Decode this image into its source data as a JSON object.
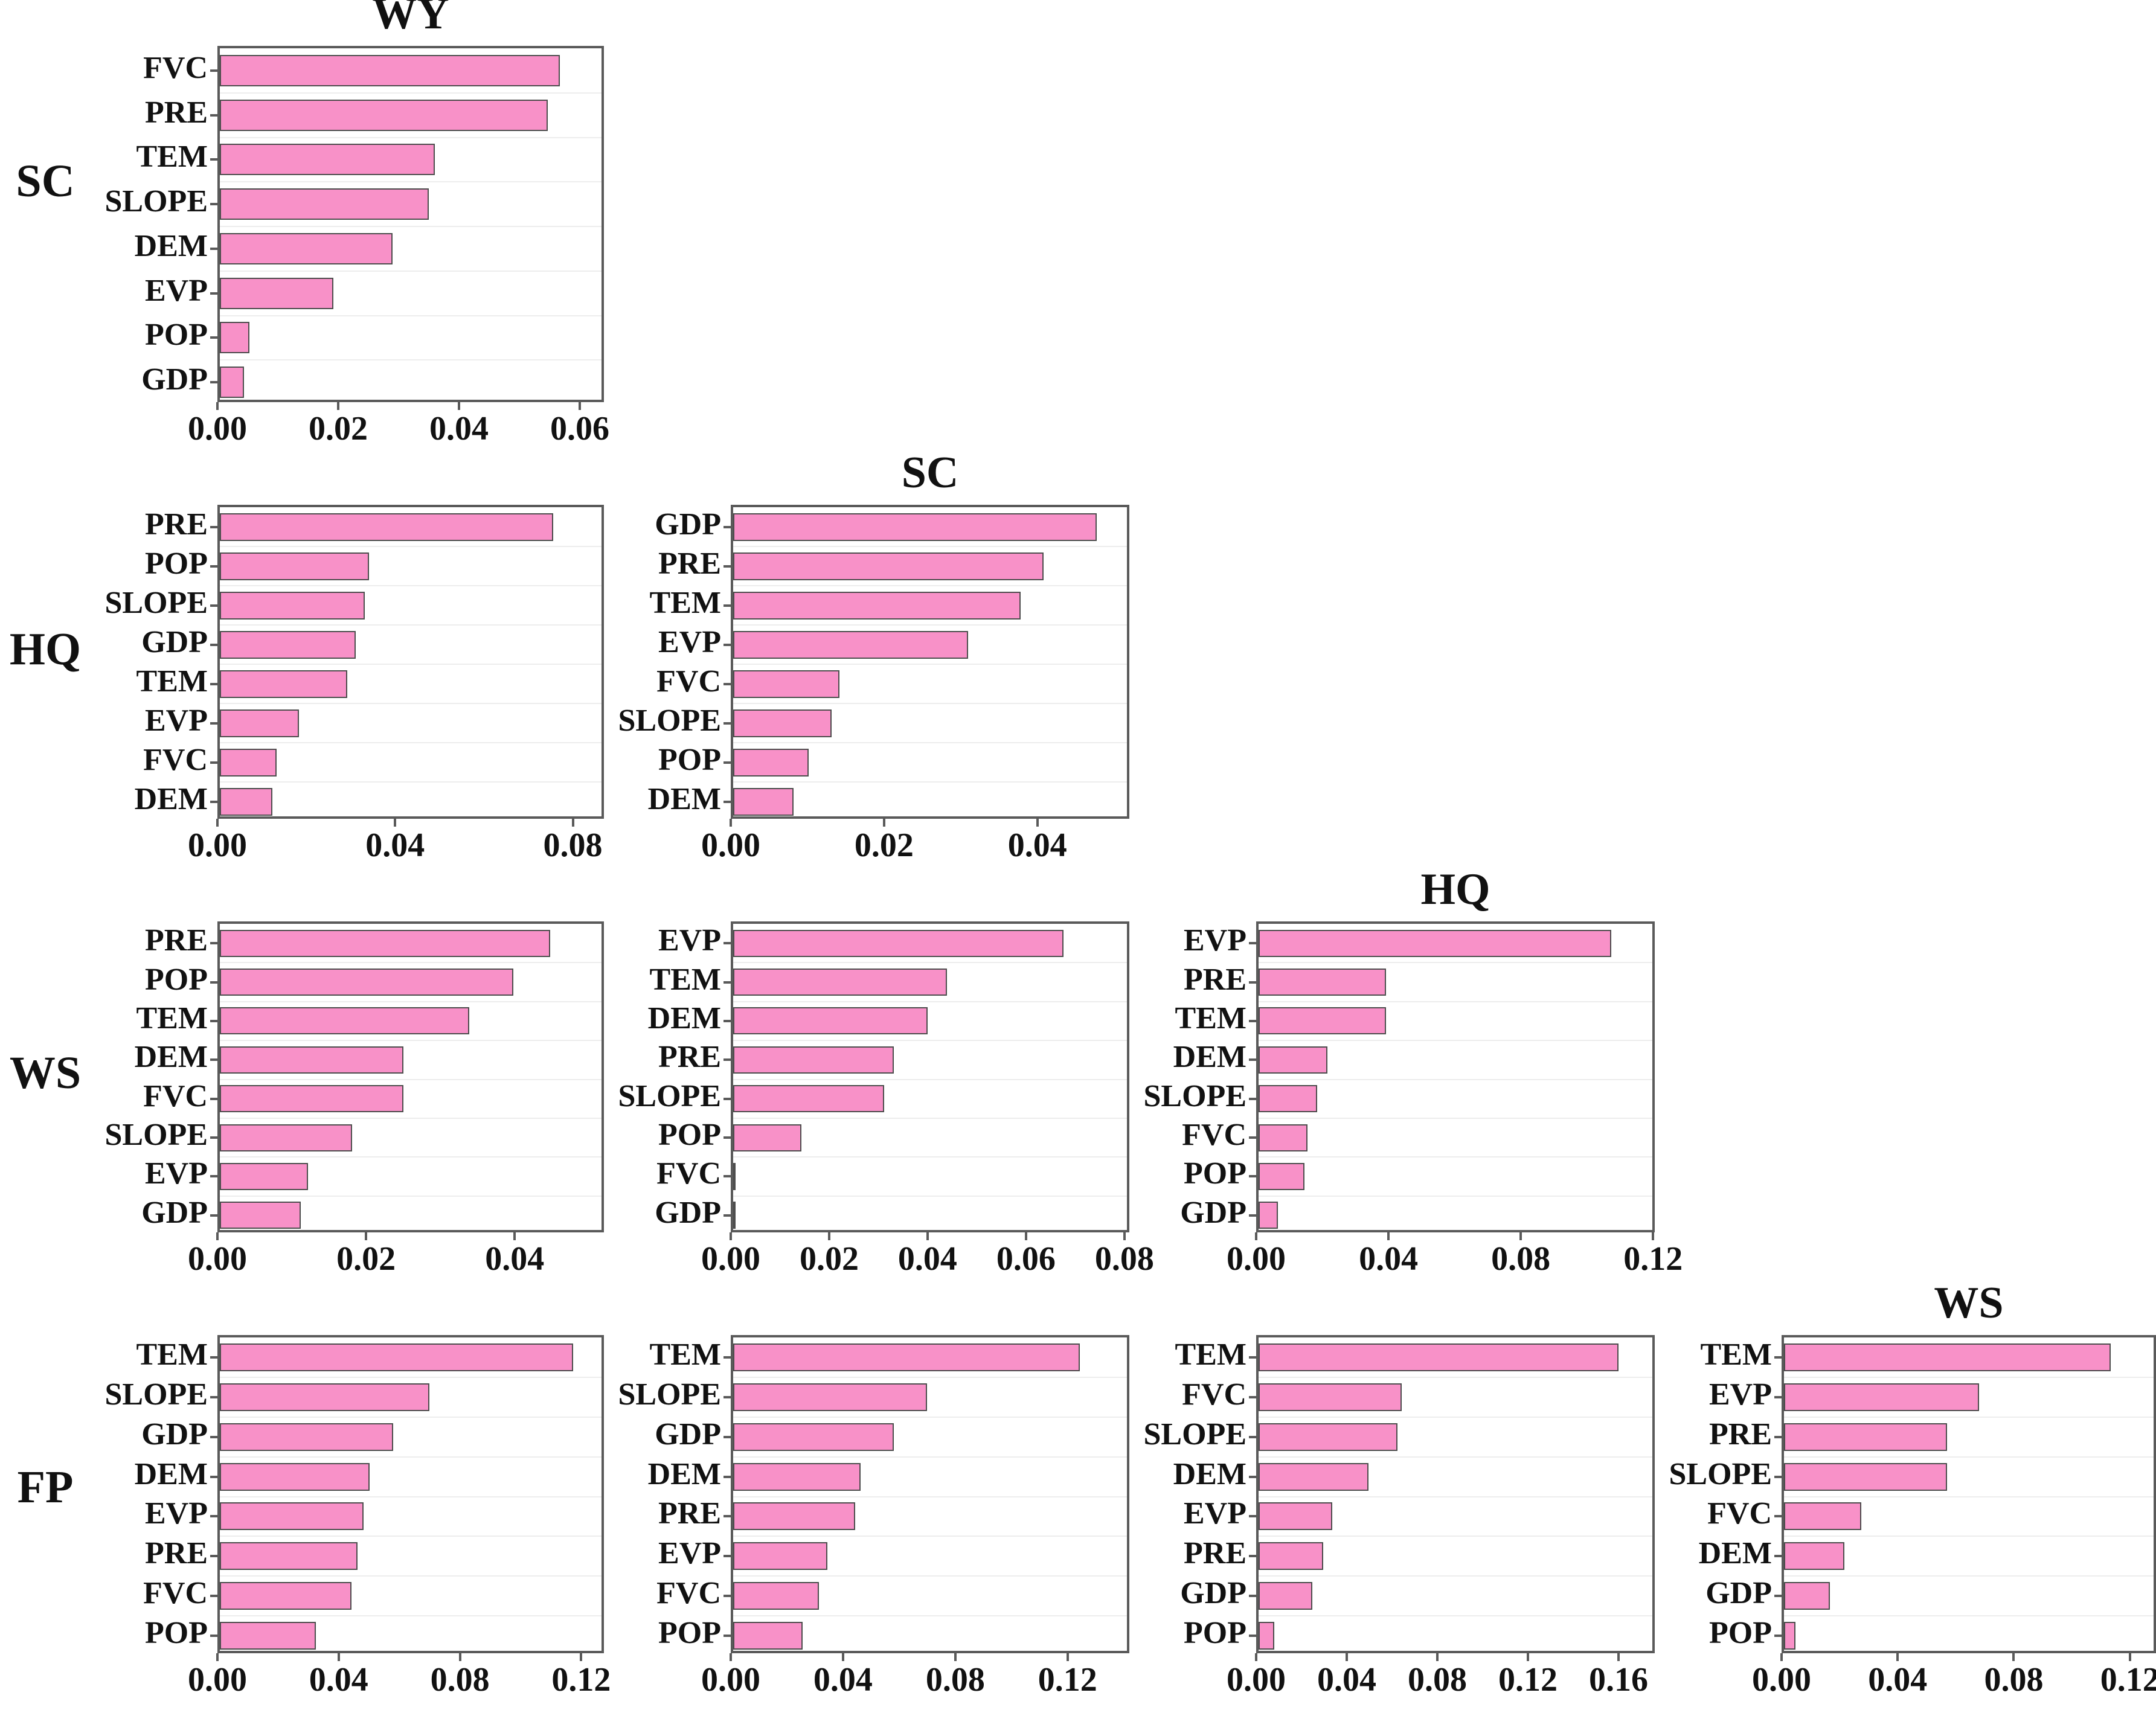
{
  "figure": {
    "bar_color": "#f891c8",
    "bar_border_color": "#4d4d4d",
    "frame_color": "#5a5a5a",
    "row_labels": [
      "SC",
      "HQ",
      "WS",
      "FP"
    ]
  },
  "chart_data": [
    {
      "type": "bar",
      "orientation": "horizontal",
      "row_label": "SC",
      "col_label": "WY",
      "title": "WY",
      "categories": [
        "FVC",
        "PRE",
        "TEM",
        "SLOPE",
        "DEM",
        "EVP",
        "POP",
        "GDP"
      ],
      "values": [
        0.057,
        0.055,
        0.036,
        0.035,
        0.029,
        0.019,
        0.005,
        0.004
      ],
      "xticks": [
        "0.00",
        "0.02",
        "0.04",
        "0.06"
      ],
      "xtick_values": [
        0,
        0.02,
        0.04,
        0.06
      ],
      "xlim": [
        0,
        0.064
      ]
    },
    {
      "type": "bar",
      "orientation": "horizontal",
      "row_label": "HQ",
      "col_label": "WY",
      "title": "",
      "categories": [
        "PRE",
        "POP",
        "SLOPE",
        "GDP",
        "TEM",
        "EVP",
        "FVC",
        "DEM"
      ],
      "values": [
        0.076,
        0.034,
        0.033,
        0.031,
        0.029,
        0.018,
        0.013,
        0.012
      ],
      "xticks": [
        "0.00",
        "0.04",
        "0.08"
      ],
      "xtick_values": [
        0,
        0.04,
        0.08
      ],
      "xlim": [
        0,
        0.087
      ]
    },
    {
      "type": "bar",
      "orientation": "horizontal",
      "row_label": "HQ",
      "col_label": "SC",
      "title": "SC",
      "categories": [
        "GDP",
        "PRE",
        "TEM",
        "EVP",
        "FVC",
        "SLOPE",
        "POP",
        "DEM"
      ],
      "values": [
        0.048,
        0.041,
        0.038,
        0.031,
        0.014,
        0.013,
        0.01,
        0.008
      ],
      "xticks": [
        "0.00",
        "0.02",
        "0.04"
      ],
      "xtick_values": [
        0,
        0.02,
        0.04
      ],
      "xlim": [
        0,
        0.052
      ]
    },
    {
      "type": "bar",
      "orientation": "horizontal",
      "row_label": "WS",
      "col_label": "WY",
      "title": "",
      "categories": [
        "PRE",
        "POP",
        "TEM",
        "DEM",
        "FVC",
        "SLOPE",
        "EVP",
        "GDP"
      ],
      "values": [
        0.045,
        0.04,
        0.034,
        0.025,
        0.025,
        0.018,
        0.012,
        0.011
      ],
      "xticks": [
        "0.00",
        "0.02",
        "0.04"
      ],
      "xtick_values": [
        0,
        0.02,
        0.04
      ],
      "xlim": [
        0,
        0.052
      ]
    },
    {
      "type": "bar",
      "orientation": "horizontal",
      "row_label": "WS",
      "col_label": "SC",
      "title": "",
      "categories": [
        "EVP",
        "TEM",
        "DEM",
        "PRE",
        "SLOPE",
        "POP",
        "FVC",
        "GDP"
      ],
      "values": [
        0.068,
        0.044,
        0.04,
        0.033,
        0.031,
        0.014,
        0.0005,
        0.0004
      ],
      "xticks": [
        "0.00",
        "0.02",
        "0.04",
        "0.06",
        "0.08"
      ],
      "xtick_values": [
        0,
        0.02,
        0.04,
        0.06,
        0.08
      ],
      "xlim": [
        0,
        0.081
      ]
    },
    {
      "type": "bar",
      "orientation": "horizontal",
      "row_label": "WS",
      "col_label": "HQ",
      "title": "HQ",
      "categories": [
        "EVP",
        "PRE",
        "TEM",
        "DEM",
        "SLOPE",
        "FVC",
        "POP",
        "GDP"
      ],
      "values": [
        0.108,
        0.039,
        0.039,
        0.021,
        0.018,
        0.015,
        0.014,
        0.006
      ],
      "xticks": [
        "0.00",
        "0.04",
        "0.08",
        "0.12"
      ],
      "xtick_values": [
        0,
        0.04,
        0.08,
        0.12
      ],
      "xlim": [
        0,
        0.1205
      ]
    },
    {
      "type": "bar",
      "orientation": "horizontal",
      "row_label": "FP",
      "col_label": "WY",
      "title": "",
      "categories": [
        "TEM",
        "SLOPE",
        "GDP",
        "DEM",
        "EVP",
        "PRE",
        "FVC",
        "POP"
      ],
      "values": [
        0.118,
        0.07,
        0.058,
        0.05,
        0.048,
        0.046,
        0.044,
        0.032
      ],
      "xticks": [
        "0.00",
        "0.04",
        "0.08",
        "0.12"
      ],
      "xtick_values": [
        0,
        0.04,
        0.08,
        0.12
      ],
      "xlim": [
        0,
        0.1275
      ]
    },
    {
      "type": "bar",
      "orientation": "horizontal",
      "row_label": "FP",
      "col_label": "SC",
      "title": "",
      "categories": [
        "TEM",
        "SLOPE",
        "GDP",
        "DEM",
        "PRE",
        "EVP",
        "FVC",
        "POP"
      ],
      "values": [
        0.125,
        0.07,
        0.058,
        0.046,
        0.044,
        0.034,
        0.031,
        0.025
      ],
      "xticks": [
        "0.00",
        "0.04",
        "0.08",
        "0.12"
      ],
      "xtick_values": [
        0,
        0.04,
        0.08,
        0.12
      ],
      "xlim": [
        0,
        0.142
      ]
    },
    {
      "type": "bar",
      "orientation": "horizontal",
      "row_label": "FP",
      "col_label": "HQ",
      "title": "",
      "categories": [
        "TEM",
        "FVC",
        "SLOPE",
        "DEM",
        "EVP",
        "PRE",
        "GDP",
        "POP"
      ],
      "values": [
        0.161,
        0.064,
        0.062,
        0.049,
        0.033,
        0.029,
        0.024,
        0.007
      ],
      "xticks": [
        "0.00",
        "0.04",
        "0.08",
        "0.12",
        "0.16"
      ],
      "xtick_values": [
        0,
        0.04,
        0.08,
        0.12,
        0.16
      ],
      "xlim": [
        0,
        0.176
      ]
    },
    {
      "type": "bar",
      "orientation": "horizontal",
      "row_label": "FP",
      "col_label": "WS",
      "title": "WS",
      "categories": [
        "TEM",
        "EVP",
        "PRE",
        "SLOPE",
        "FVC",
        "DEM",
        "GDP",
        "POP"
      ],
      "values": [
        0.114,
        0.068,
        0.057,
        0.057,
        0.027,
        0.021,
        0.016,
        0.004
      ],
      "xticks": [
        "0.00",
        "0.04",
        "0.08",
        "0.12"
      ],
      "xtick_values": [
        0,
        0.04,
        0.08,
        0.12
      ],
      "xlim": [
        0,
        0.129
      ]
    }
  ]
}
